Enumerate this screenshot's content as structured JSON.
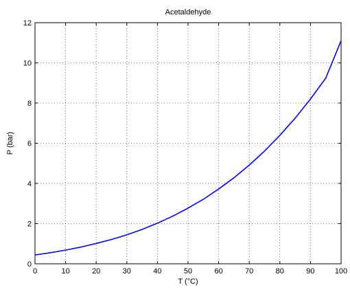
{
  "chart_data": {
    "type": "line",
    "title": "Acetaldehyde",
    "xlabel": "T (°C)",
    "ylabel": "P (bar)",
    "xlim": [
      0,
      100
    ],
    "ylim": [
      0,
      12
    ],
    "xticks": [
      0,
      10,
      20,
      30,
      40,
      50,
      60,
      70,
      80,
      90,
      100
    ],
    "yticks": [
      0,
      2,
      4,
      6,
      8,
      10,
      12
    ],
    "grid": true,
    "series": [
      {
        "color": "#0000ff",
        "x": [
          0,
          5,
          10,
          15,
          20,
          25,
          30,
          35,
          40,
          45,
          50,
          55,
          60,
          65,
          70,
          75,
          80,
          85,
          90,
          95,
          100
        ],
        "y": [
          0.44,
          0.55,
          0.68,
          0.83,
          1.01,
          1.21,
          1.44,
          1.71,
          2.02,
          2.37,
          2.77,
          3.21,
          3.72,
          4.28,
          4.91,
          5.61,
          6.39,
          7.25,
          8.2,
          9.24,
          11.1
        ]
      }
    ]
  }
}
